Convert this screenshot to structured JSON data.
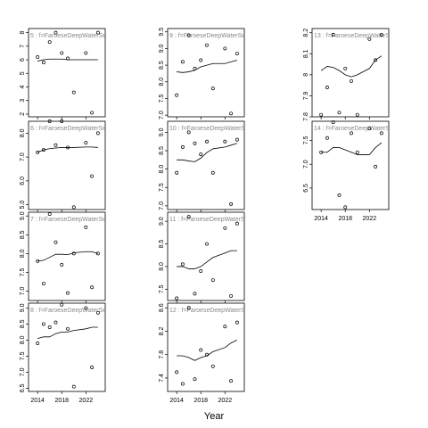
{
  "xlabel": "Year",
  "chart_data": [
    {
      "type": "scatter",
      "title": "5 : f=FaroeseDeepWaterSe",
      "x": [
        2014,
        2015,
        2016,
        2017,
        2018,
        2019,
        2020,
        2022,
        2023,
        2024
      ],
      "values": [
        6.2,
        5.8,
        7.3,
        8.0,
        6.5,
        6.1,
        3.6,
        6.5,
        2.1,
        8.0
      ],
      "line_values": [
        5.9,
        6.0,
        6.05,
        6.05,
        6.05,
        6.0,
        6.0,
        6.0,
        6.0,
        6.0
      ],
      "xlim": [
        2012.5,
        2025.2
      ],
      "xticks": [
        2014,
        2018,
        2022
      ],
      "ylim": [
        1.8,
        8.3
      ],
      "yticks": [
        2,
        3,
        4,
        5,
        6,
        7,
        8
      ]
    },
    {
      "type": "scatter",
      "title": "6 : f=FaroeseDeepWaterSe",
      "x": [
        2014,
        2015,
        2016,
        2017,
        2018,
        2019,
        2020,
        2022,
        2023,
        2024
      ],
      "values": [
        7.2,
        7.3,
        8.5,
        7.5,
        8.5,
        7.4,
        4.9,
        7.6,
        6.2,
        8.0
      ],
      "line_values": [
        7.2,
        7.3,
        7.35,
        7.38,
        7.4,
        7.4,
        7.4,
        7.42,
        7.42,
        7.4
      ],
      "xlim": [
        2012.5,
        2025.2
      ],
      "xticks": [
        2014,
        2018,
        2022
      ],
      "ylim": [
        4.8,
        8.5
      ],
      "yticks": [
        {
          "value": 5,
          "label": "5.0"
        },
        {
          "value": 6,
          "label": "6.0"
        },
        {
          "value": 7,
          "label": "7.0"
        },
        {
          "value": 8,
          "label": "8.0"
        }
      ]
    },
    {
      "type": "scatter",
      "title": "7 : f=FaroeseDeepWaterSe",
      "x": [
        2014,
        2015,
        2016,
        2017,
        2018,
        2019,
        2020,
        2022,
        2023,
        2024
      ],
      "values": [
        7.8,
        7.2,
        9.05,
        8.3,
        7.7,
        6.95,
        8.0,
        8.7,
        7.1,
        8.0
      ],
      "line_values": [
        7.8,
        7.82,
        7.9,
        7.98,
        7.98,
        7.97,
        8.02,
        8.05,
        8.05,
        8.0
      ],
      "xlim": [
        2012.5,
        2025.2
      ],
      "xticks": [
        2014,
        2018,
        2022
      ],
      "ylim": [
        6.75,
        9.1
      ],
      "yticks": [
        {
          "value": 7,
          "label": "7.0"
        },
        7.5,
        {
          "value": 8,
          "label": "8.0"
        },
        8.5,
        {
          "value": 9,
          "label": "9.0"
        }
      ]
    },
    {
      "type": "scatter",
      "title": "8 : f=FaroeseDeepWaterSe",
      "x": [
        2014,
        2015,
        2016,
        2017,
        2018,
        2019,
        2020,
        2022,
        2023,
        2024
      ],
      "values": [
        7.9,
        8.5,
        8.4,
        8.55,
        9.1,
        8.35,
        6.55,
        9.0,
        7.15,
        8.85
      ],
      "line_values": [
        8.05,
        8.1,
        8.1,
        8.2,
        8.25,
        8.25,
        8.3,
        8.35,
        8.4,
        8.4
      ],
      "xlim": [
        2012.5,
        2025.2
      ],
      "xticks": [
        2014,
        2018,
        2022
      ],
      "ylim": [
        6.4,
        9.15
      ],
      "yticks": [
        6.5,
        {
          "value": 7,
          "label": "7.0"
        },
        7.5,
        {
          "value": 8,
          "label": "8.0"
        },
        8.5,
        {
          "value": 9,
          "label": "9.0"
        }
      ]
    },
    {
      "type": "scatter",
      "title": "9 : f=FaroeseDeepWaterSe",
      "x": [
        2014,
        2015,
        2016,
        2017,
        2018,
        2019,
        2020,
        2022,
        2023,
        2024
      ],
      "values": [
        7.6,
        8.6,
        9.4,
        8.4,
        8.65,
        9.1,
        7.8,
        9.0,
        7.05,
        8.85
      ],
      "line_values": [
        8.3,
        8.28,
        8.3,
        8.35,
        8.45,
        8.5,
        8.55,
        8.55,
        8.6,
        8.65
      ],
      "xlim": [
        2012.5,
        2025.2
      ],
      "xticks": [
        2014,
        2018,
        2022
      ],
      "ylim": [
        6.95,
        9.6
      ],
      "yticks": [
        {
          "value": 7,
          "label": "7.0"
        },
        7.5,
        {
          "value": 8,
          "label": "8.0"
        },
        8.5,
        {
          "value": 9,
          "label": "9.0"
        },
        9.5
      ]
    },
    {
      "type": "scatter",
      "title": "10 : f=FaroeseDeepWaterSe",
      "x": [
        2014,
        2015,
        2016,
        2017,
        2018,
        2019,
        2020,
        2022,
        2023,
        2024
      ],
      "values": [
        7.9,
        8.6,
        9.0,
        8.7,
        8.4,
        8.75,
        7.9,
        8.75,
        7.05,
        8.8
      ],
      "line_values": [
        8.25,
        8.25,
        8.22,
        8.2,
        8.3,
        8.45,
        8.55,
        8.6,
        8.65,
        8.7
      ],
      "xlim": [
        2012.5,
        2025.2
      ],
      "xticks": [
        2014,
        2018,
        2022
      ],
      "ylim": [
        6.9,
        9.3
      ],
      "yticks": [
        {
          "value": 7,
          "label": "7.0"
        },
        7.5,
        {
          "value": 8,
          "label": "8.0"
        },
        8.5,
        {
          "value": 9,
          "label": "9.0"
        }
      ]
    },
    {
      "type": "scatter",
      "title": "11 : f=FaroeseDeepWaterSe",
      "x": [
        2014,
        2015,
        2016,
        2017,
        2018,
        2019,
        2020,
        2022,
        2023,
        2024
      ],
      "values": [
        7.3,
        8.05,
        9.1,
        7.4,
        7.9,
        8.5,
        7.7,
        8.85,
        7.35,
        8.95
      ],
      "line_values": [
        8.0,
        8.0,
        7.95,
        7.95,
        8.0,
        8.1,
        8.2,
        8.3,
        8.35,
        8.35
      ],
      "xlim": [
        2012.5,
        2025.2
      ],
      "xticks": [
        2014,
        2018,
        2022
      ],
      "ylim": [
        7.25,
        9.2
      ],
      "yticks": [
        7.5,
        {
          "value": 8,
          "label": "8.0"
        },
        8.5,
        {
          "value": 9,
          "label": "9.0"
        }
      ]
    },
    {
      "type": "scatter",
      "title": "12 : f=FaroeseDeepWaterSe",
      "x": [
        2014,
        2015,
        2016,
        2017,
        2018,
        2019,
        2020,
        2022,
        2023,
        2024
      ],
      "values": [
        7.5,
        7.3,
        8.6,
        7.38,
        7.88,
        7.8,
        7.6,
        8.28,
        7.35,
        8.35
      ],
      "line_values": [
        7.78,
        7.78,
        7.75,
        7.7,
        7.75,
        7.78,
        7.85,
        7.92,
        8.0,
        8.05
      ],
      "xlim": [
        2012.5,
        2025.2
      ],
      "xticks": [
        2014,
        2018,
        2022
      ],
      "ylim": [
        7.17,
        8.68
      ],
      "yticks": [
        7.4,
        7.8,
        8.2,
        8.6
      ]
    },
    {
      "type": "scatter",
      "title": "13 : f=FaroeseDeepWaterSe",
      "x": [
        2014,
        2015,
        2016,
        2017,
        2018,
        2019,
        2020,
        2022,
        2023,
        2024
      ],
      "values": [
        7.81,
        7.94,
        8.19,
        7.82,
        8.03,
        7.97,
        7.81,
        8.17,
        8.07,
        8.19
      ],
      "line_values": [
        8.02,
        8.04,
        8.035,
        8.02,
        8.0,
        7.99,
        8.0,
        8.03,
        8.07,
        8.09
      ],
      "xlim": [
        2012.5,
        2025.2
      ],
      "xticks": [
        2014,
        2018,
        2022
      ],
      "ylim": [
        7.8,
        8.22
      ],
      "yticks": [
        7.8,
        7.9,
        8.0,
        8.1,
        8.2
      ]
    },
    {
      "type": "scatter",
      "title": "14 : f=FaroeseDeepWaterSe",
      "x": [
        2014,
        2015,
        2016,
        2017,
        2018,
        2019,
        2020,
        2022,
        2023,
        2024
      ],
      "values": [
        7.25,
        7.55,
        7.88,
        6.35,
        6.1,
        7.65,
        7.25,
        7.75,
        6.95,
        7.65
      ],
      "line_values": [
        7.25,
        7.25,
        7.35,
        7.35,
        7.3,
        7.25,
        7.2,
        7.2,
        7.35,
        7.45
      ],
      "xlim": [
        2012.5,
        2025.2
      ],
      "xticks": [
        2014,
        2018,
        2022
      ],
      "ylim": [
        6.05,
        7.9
      ],
      "yticks": [
        6.5,
        {
          "value": 7,
          "label": "7.0"
        },
        7.5
      ]
    }
  ]
}
